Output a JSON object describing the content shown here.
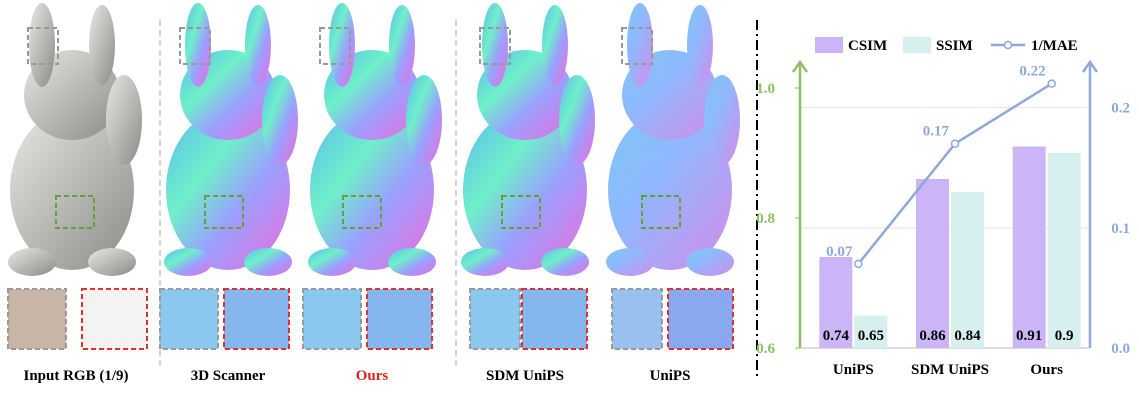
{
  "panels": [
    {
      "caption": "Input RGB (1/9)"
    },
    {
      "caption": "3D Scanner"
    },
    {
      "caption": "Ours"
    },
    {
      "caption": "SDM UniPS"
    },
    {
      "caption": "UniPS"
    }
  ],
  "chart_data": {
    "type": "bar",
    "categories": [
      "UniPS",
      "SDM UniPS",
      "Ours"
    ],
    "series": [
      {
        "name": "CSIM",
        "color": "#cbb5f6",
        "values": [
          0.74,
          0.86,
          0.91
        ]
      },
      {
        "name": "SSIM",
        "color": "#d5f0ee",
        "values": [
          0.65,
          0.84,
          0.9
        ]
      },
      {
        "name": "1/MAE",
        "color": "#8ea8da",
        "type": "line",
        "axis": "y2",
        "values": [
          0.07,
          0.17,
          0.22
        ]
      }
    ],
    "ylim": [
      0.6,
      1.04
    ],
    "yticks": [
      0.6,
      0.8,
      {
        "value": 1,
        "label": "1.0"
      }
    ],
    "y2lim": [
      0,
      0.238
    ],
    "y2ticks": [
      {
        "value": 0,
        "label": "0.0"
      },
      0.1,
      0.2
    ],
    "ycolor": "#8dbf63",
    "y2color": "#8ea8da",
    "legend": "top"
  }
}
